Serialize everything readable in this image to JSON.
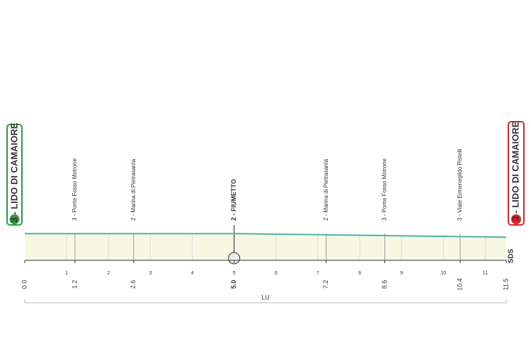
{
  "chart_data": {
    "type": "profile",
    "start": "3 - LIDO DI CAMAIORE",
    "finish": "3 - LIDO DI CAMAIORE",
    "x": [
      0,
      5,
      11.5
    ],
    "values": [
      3,
      3,
      2.6
    ],
    "color": "#4fb3a9",
    "fill": "#f6f8e3",
    "xlim": [
      0,
      11.5
    ],
    "ylim": [
      0,
      5
    ],
    "km_ticks": [
      1,
      2,
      3,
      4,
      5,
      6,
      7,
      8,
      9,
      10,
      11
    ],
    "xticks": [
      {
        "value": 0,
        "label": "0.0"
      },
      1.2,
      2.6,
      {
        "value": 5,
        "label": "5.0"
      },
      7.2,
      8.6,
      10.4,
      11.5
    ],
    "waypoints": [
      {
        "name": "3 - Ponte Fosso Motrone",
        "km": 1.2
      },
      {
        "name": "2 - Marina di Pietrasanta",
        "km": 2.6
      },
      {
        "name": "2 - FIUMETTO",
        "km": 5
      },
      {
        "name": "2 - Marina di Pietrasanta",
        "km": 7.2
      },
      {
        "name": "3 - Ponte Fosso Motrone",
        "km": 8.6
      },
      {
        "name": "3 - Viale Ermenegildo Pistelli",
        "km": 10.4
      }
    ],
    "province": "LU",
    "brand": "SDS"
  }
}
